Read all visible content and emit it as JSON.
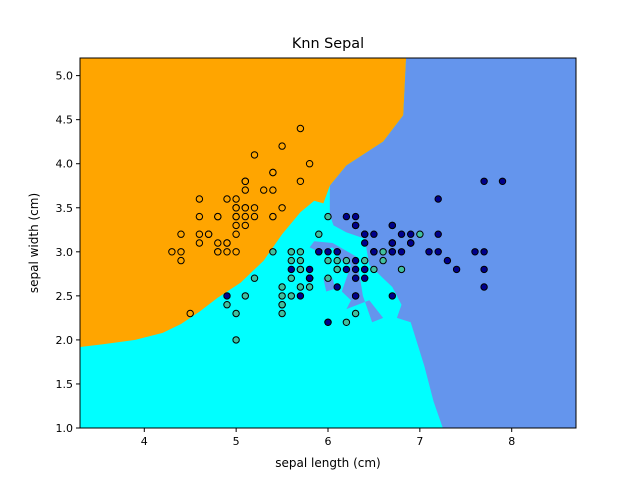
{
  "chart_data": {
    "type": "scatter",
    "title": "Knn Sepal",
    "xlabel": "sepal length (cm)",
    "ylabel": "sepal width (cm)",
    "xlim": [
      3.3,
      8.7
    ],
    "ylim": [
      1.0,
      5.2
    ],
    "xticks": [
      4,
      5,
      6,
      7,
      8
    ],
    "yticks": [
      1.0,
      1.5,
      2.0,
      2.5,
      3.0,
      3.5,
      4.0,
      4.5,
      5.0
    ],
    "xtick_labels": [
      "4",
      "5",
      "6",
      "7",
      "8"
    ],
    "ytick_labels": [
      "1.0",
      "1.5",
      "2.0",
      "2.5",
      "3.0",
      "3.5",
      "4.0",
      "4.5",
      "5.0"
    ],
    "grid": false,
    "legend": "none",
    "colors": {
      "region_0": "#FFA500",
      "region_1": "#00FFFF",
      "region_2": "#6495ED",
      "point_0": "#FFA500",
      "point_1": "#40C0A0",
      "point_2": "#00008B",
      "edge": "#000000"
    },
    "regions": [
      {
        "class": 0,
        "polygon": [
          [
            3.3,
            1.92
          ],
          [
            3.55,
            1.95
          ],
          [
            3.9,
            2.0
          ],
          [
            4.2,
            2.08
          ],
          [
            4.4,
            2.18
          ],
          [
            4.6,
            2.32
          ],
          [
            4.8,
            2.48
          ],
          [
            5.05,
            2.65
          ],
          [
            5.3,
            2.9
          ],
          [
            5.5,
            3.2
          ],
          [
            5.7,
            3.45
          ],
          [
            5.85,
            3.58
          ],
          [
            5.95,
            3.55
          ],
          [
            6.02,
            3.75
          ],
          [
            6.2,
            3.98
          ],
          [
            6.6,
            4.25
          ],
          [
            6.82,
            4.55
          ],
          [
            6.85,
            5.2
          ],
          [
            3.3,
            5.2
          ]
        ]
      },
      {
        "class": 2,
        "polygon": [
          [
            6.85,
            5.2
          ],
          [
            6.82,
            4.55
          ],
          [
            6.6,
            4.25
          ],
          [
            6.2,
            3.98
          ],
          [
            6.02,
            3.75
          ],
          [
            6.02,
            3.42
          ],
          [
            6.06,
            3.3
          ],
          [
            6.2,
            3.22
          ],
          [
            6.4,
            3.15
          ],
          [
            6.45,
            2.85
          ],
          [
            6.55,
            2.75
          ],
          [
            6.7,
            2.6
          ],
          [
            6.8,
            2.4
          ],
          [
            6.75,
            2.25
          ],
          [
            6.9,
            2.2
          ],
          [
            7.05,
            1.7
          ],
          [
            7.15,
            1.3
          ],
          [
            7.25,
            1.0
          ],
          [
            8.7,
            1.0
          ],
          [
            8.7,
            5.2
          ]
        ]
      },
      {
        "class": 2,
        "polygon": [
          [
            5.8,
            3.05
          ],
          [
            5.9,
            3.0
          ],
          [
            6.05,
            3.05
          ],
          [
            6.15,
            2.9
          ],
          [
            6.25,
            2.85
          ],
          [
            6.2,
            2.7
          ],
          [
            6.15,
            2.55
          ],
          [
            6.25,
            2.45
          ],
          [
            6.2,
            2.35
          ],
          [
            6.45,
            2.45
          ],
          [
            6.6,
            2.25
          ],
          [
            6.48,
            2.2
          ],
          [
            6.38,
            2.5
          ],
          [
            6.35,
            2.7
          ],
          [
            6.3,
            2.95
          ],
          [
            6.05,
            3.1
          ],
          [
            5.85,
            3.12
          ]
        ]
      },
      {
        "class": 2,
        "polygon": [
          [
            5.95,
            2.7
          ],
          [
            6.05,
            2.7
          ],
          [
            6.08,
            2.58
          ],
          [
            5.98,
            2.55
          ]
        ]
      }
    ],
    "series": [
      {
        "class": 0,
        "x": [
          5.1,
          4.9,
          4.7,
          4.6,
          5.0,
          5.4,
          4.6,
          5.0,
          4.4,
          4.9,
          5.4,
          4.8,
          4.8,
          4.3,
          5.8,
          5.7,
          5.4,
          5.1,
          5.7,
          5.1,
          5.4,
          5.1,
          4.6,
          5.1,
          4.8,
          5.0,
          5.0,
          5.2,
          5.2,
          4.7,
          4.8,
          5.4,
          5.2,
          5.5,
          4.9,
          5.0,
          5.5,
          4.9,
          4.4,
          5.1,
          5.0,
          4.5,
          4.4,
          5.0,
          5.1,
          4.8,
          5.1,
          4.6,
          5.3,
          5.0
        ],
        "y": [
          3.5,
          3.0,
          3.2,
          3.1,
          3.6,
          3.9,
          3.4,
          3.4,
          2.9,
          3.1,
          3.7,
          3.4,
          3.0,
          3.0,
          4.0,
          4.4,
          3.9,
          3.5,
          3.8,
          3.8,
          3.4,
          3.7,
          3.6,
          3.3,
          3.4,
          3.0,
          3.4,
          3.5,
          3.4,
          3.2,
          3.1,
          3.4,
          4.1,
          4.2,
          3.1,
          3.2,
          3.5,
          3.6,
          3.0,
          3.4,
          3.5,
          2.3,
          3.2,
          3.5,
          3.8,
          3.0,
          3.8,
          3.2,
          3.7,
          3.3
        ]
      },
      {
        "class": 1,
        "x": [
          7.0,
          6.4,
          6.9,
          5.5,
          6.5,
          5.7,
          6.3,
          4.9,
          6.6,
          5.2,
          5.0,
          5.9,
          6.0,
          6.1,
          5.6,
          6.7,
          5.6,
          5.8,
          6.2,
          5.6,
          5.9,
          6.1,
          6.3,
          6.1,
          6.4,
          6.6,
          6.8,
          6.7,
          6.0,
          5.7,
          5.5,
          5.5,
          5.8,
          6.0,
          5.4,
          6.0,
          6.7,
          6.3,
          5.6,
          5.5,
          5.5,
          6.1,
          5.8,
          5.0,
          5.6,
          5.7,
          5.7,
          6.2,
          5.1,
          5.7
        ],
        "y": [
          3.2,
          3.2,
          3.1,
          2.3,
          2.8,
          2.8,
          3.3,
          2.4,
          2.9,
          2.7,
          2.0,
          3.0,
          2.2,
          2.9,
          2.9,
          3.1,
          3.0,
          2.7,
          2.2,
          2.5,
          3.2,
          2.8,
          2.5,
          2.8,
          2.9,
          3.0,
          2.8,
          3.0,
          2.9,
          2.6,
          2.4,
          2.4,
          2.7,
          2.7,
          3.0,
          3.4,
          3.1,
          2.3,
          3.0,
          2.5,
          2.6,
          3.0,
          2.6,
          2.3,
          2.7,
          3.0,
          2.9,
          2.9,
          2.5,
          2.8
        ]
      },
      {
        "class": 2,
        "x": [
          6.3,
          5.8,
          7.1,
          6.3,
          6.5,
          7.6,
          4.9,
          7.3,
          6.7,
          7.2,
          6.5,
          6.4,
          6.8,
          5.7,
          5.8,
          6.4,
          6.5,
          7.7,
          7.7,
          6.0,
          6.9,
          5.6,
          7.7,
          6.3,
          6.7,
          7.2,
          6.2,
          6.1,
          6.4,
          7.2,
          7.4,
          7.9,
          6.4,
          6.3,
          6.1,
          7.7,
          6.3,
          6.4,
          6.0,
          6.9,
          6.7,
          6.9,
          5.8,
          6.8,
          6.7,
          6.7,
          6.3,
          6.5,
          6.2,
          5.9
        ],
        "y": [
          3.3,
          2.7,
          3.0,
          2.9,
          3.0,
          3.0,
          2.5,
          2.9,
          2.5,
          3.6,
          3.2,
          2.7,
          3.0,
          2.5,
          2.8,
          3.2,
          3.0,
          3.8,
          2.6,
          2.2,
          3.2,
          2.8,
          2.8,
          2.7,
          3.3,
          3.2,
          2.8,
          3.0,
          2.8,
          3.0,
          2.8,
          3.8,
          2.8,
          2.8,
          2.6,
          3.0,
          3.4,
          3.1,
          3.0,
          3.1,
          3.1,
          3.1,
          2.7,
          3.2,
          3.3,
          3.0,
          2.5,
          3.0,
          3.4,
          3.0
        ]
      }
    ]
  }
}
